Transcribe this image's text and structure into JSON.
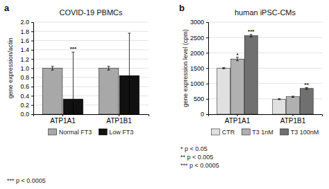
{
  "chart_data": [
    {
      "type": "bar",
      "title": "COVID-19 PBMCs",
      "panel_label": "a",
      "ylabel": "gene expression/actin",
      "categories": [
        "ATP1A1",
        "ATP1B1"
      ],
      "series": [
        {
          "name": "Normal FT3",
          "color": "#a8a8a8",
          "values": [
            1.0,
            1.0
          ],
          "errors": [
            0.04,
            0.04
          ]
        },
        {
          "name": "Low FT3",
          "color": "#111111",
          "values": [
            0.33,
            0.84
          ],
          "errors": [
            1.02,
            0.92
          ]
        }
      ],
      "ylim": [
        0,
        2.0
      ],
      "yticks": [
        {
          "value": 0,
          "label": "0.0"
        },
        0.2,
        0.4,
        0.6,
        0.8,
        {
          "value": 1.0,
          "label": "1.0"
        },
        1.2,
        1.4,
        1.6,
        1.8,
        {
          "value": 2.0,
          "label": "2.0"
        }
      ],
      "annotations": [
        {
          "text": "***",
          "category": "ATP1A1",
          "series": "Low FT3",
          "y": 1.38
        }
      ],
      "footnotes": [
        "*** p < 0.0005"
      ],
      "grid": true,
      "legend": "bottom"
    },
    {
      "type": "bar",
      "title": "human iPSC-CMs",
      "panel_label": "b",
      "ylabel": "gene expression level (cpm)",
      "categories": [
        "ATP1A1",
        "ATP1B1"
      ],
      "series": [
        {
          "name": "CTR",
          "color": "#e0e0e0",
          "values": [
            1500,
            490
          ],
          "errors": [
            18,
            15
          ]
        },
        {
          "name": "T3 1nM",
          "color": "#b0b0b0",
          "values": [
            1800,
            570
          ],
          "errors": [
            55,
            18
          ]
        },
        {
          "name": "T3 100nM",
          "color": "#707070",
          "values": [
            2560,
            840
          ],
          "errors": [
            38,
            28
          ]
        }
      ],
      "ylim": [
        0,
        3000
      ],
      "yticks": [
        0,
        500,
        1000,
        1500,
        2000,
        2500,
        3000
      ],
      "annotations": [
        {
          "text": "*",
          "category": "ATP1A1",
          "series": "T3 1nM",
          "y": 1880
        },
        {
          "text": "***",
          "category": "ATP1A1",
          "series": "T3 100nM",
          "y": 2650
        },
        {
          "text": "**",
          "category": "ATP1B1",
          "series": "T3 100nM",
          "y": 905
        }
      ],
      "footnotes": [
        "* p < 0.05",
        "** p < 0.005",
        "*** p < 0.0005"
      ],
      "grid": true,
      "legend": "bottom"
    }
  ]
}
